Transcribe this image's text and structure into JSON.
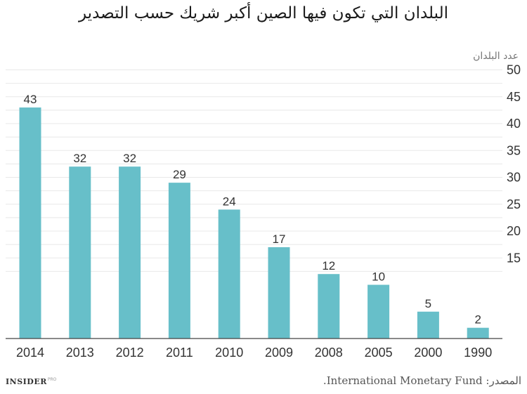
{
  "title": "البلدان التي تكون فيها الصين أكبر شريك حسب التصدير",
  "source": "المصدر: International Monetary Fund.",
  "logo": {
    "text": "INSIDER",
    "sub": "PRO"
  },
  "colors": {
    "bar": "#67bfc9",
    "grid": "#e8e8e8",
    "axis": "#444444"
  },
  "chart_data": {
    "type": "bar",
    "title": "البلدان التي تكون فيها الصين أكبر شريك حسب التصدير",
    "xlabel": "",
    "ylabel": "عدد البلدان",
    "categories": [
      "2014",
      "2013",
      "2012",
      "2011",
      "2010",
      "2009",
      "2008",
      "2005",
      "2000",
      "1990"
    ],
    "values": [
      43,
      32,
      32,
      29,
      24,
      17,
      12,
      10,
      5,
      2
    ],
    "yticks": [
      15,
      20,
      25,
      30,
      35,
      40,
      45,
      50
    ],
    "y_axis_side": "right",
    "grid": true,
    "data_labels": true
  }
}
